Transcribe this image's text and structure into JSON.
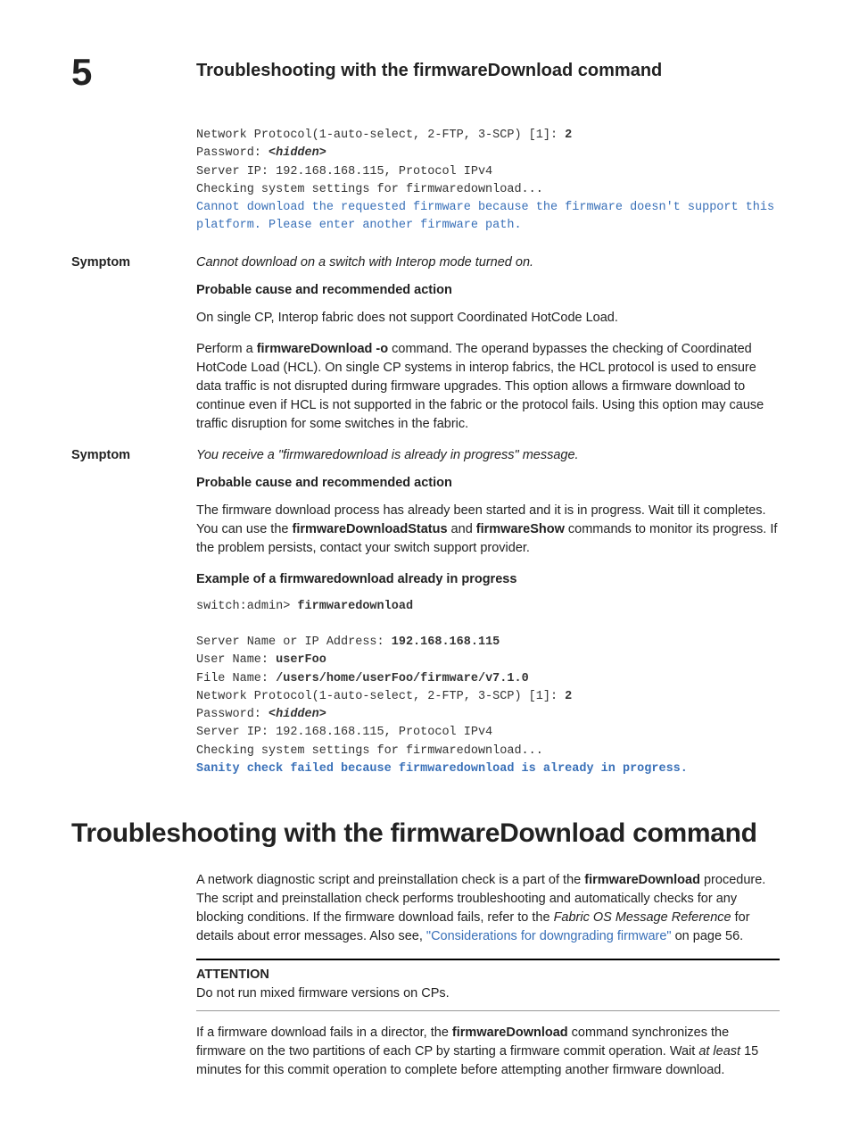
{
  "header": {
    "chapter_number": "5",
    "chapter_title": "Troubleshooting with the firmwareDownload command"
  },
  "code1": {
    "l1a": "Network Protocol(1-auto-select, 2-FTP, 3-SCP) [1]: ",
    "l1b": "2",
    "l2a": "Password: ",
    "l2b": "<hidden>",
    "l3": "Server IP: 192.168.168.115, Protocol IPv4",
    "l4": "Checking system settings for firmwaredownload...",
    "l5": "Cannot download the requested firmware because the firmware doesn't support this",
    "l6": "platform. Please enter another firmware path."
  },
  "sym1": {
    "label": "Symptom",
    "text": "Cannot download on a switch with Interop mode turned on.",
    "cause_head": "Probable cause and recommended action",
    "p1": "On single CP, Interop fabric does not support Coordinated HotCode Load.",
    "p2a": "Perform a ",
    "p2b": "firmwareDownload -o",
    "p2c": " command. The operand bypasses the checking of Coordinated HotCode Load (HCL). On single CP systems in interop fabrics, the HCL protocol is used to ensure data traffic is not disrupted during firmware upgrades. This option allows a firmware download to continue even if HCL is not supported in the fabric or the protocol fails. Using this option may cause traffic disruption for some switches in the fabric."
  },
  "sym2": {
    "label": "Symptom",
    "text": "You receive a \"firmwaredownload is already in progress\" message.",
    "cause_head": "Probable cause and recommended action",
    "p1a": "The firmware download process has already been started and it is in progress. Wait till it completes. You can use the ",
    "p1b": "firmwareDownloadStatus",
    "p1c": " and ",
    "p1d": "firmwareShow",
    "p1e": " commands to monitor its progress. If the problem persists, contact your switch support provider.",
    "example_head": "Example  of a firmwaredownload already in progress"
  },
  "code2": {
    "l1a": "switch:admin> ",
    "l1b": "firmwaredownload",
    "l3a": "Server Name or IP Address: ",
    "l3b": "192.168.168.115",
    "l4a": "User Name: ",
    "l4b": "userFoo",
    "l5a": "File Name: ",
    "l5b": "/users/home/userFoo/firmware/v7.1.0",
    "l6a": "Network Protocol(1-auto-select, 2-FTP, 3-SCP) [1]: ",
    "l6b": "2",
    "l7a": "Password: ",
    "l7b": "<hidden>",
    "l8": "Server IP: 192.168.168.115, Protocol IPv4",
    "l9": "Checking system settings for firmwaredownload...",
    "l10": "Sanity check failed because firmwaredownload is already in progress."
  },
  "section": {
    "title": "Troubleshooting with the firmwareDownload command",
    "p1a": "A network diagnostic script and preinstallation check is a part of the ",
    "p1b": "firmwareDownload",
    "p1c": " procedure. The script and preinstallation check performs troubleshooting and automatically checks for any blocking conditions. If the firmware download fails, refer to the ",
    "p1d": "Fabric OS Message Reference",
    "p1e": " for details about error messages. Also see, ",
    "p1f": "\"Considerations for downgrading firmware\"",
    "p1g": " on page 56.",
    "att_head": "ATTENTION",
    "att_body": "Do not run mixed firmware versions on CPs.",
    "p2a": "If a firmware download fails in a director, the ",
    "p2b": "firmwareDownload",
    "p2c": " command synchronizes the firmware on the two partitions of each CP by starting a firmware commit operation. Wait ",
    "p2d": "at least",
    "p2e": " 15 minutes for this commit operation to complete before attempting another firmware download."
  }
}
